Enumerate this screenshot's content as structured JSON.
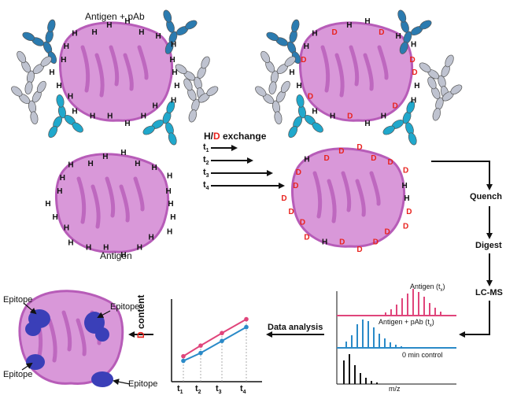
{
  "labels": {
    "antigen_pab": "Antigen + pAb",
    "antigen": "Antigen",
    "hd_exchange_prefix": "H/",
    "hd_exchange_d": "D",
    "hd_exchange_suffix": " exchange",
    "times": [
      "t",
      "t",
      "t",
      "t"
    ],
    "time_subs": [
      "1",
      "2",
      "3",
      "4"
    ],
    "quench": "Quench",
    "digest": "Digest",
    "lcms": "LC-MS",
    "data_analysis": "Data analysis",
    "epitope": "Epitope",
    "hydrogen": "H",
    "deuterium": "D"
  },
  "ms": {
    "panel1": "Antigen (t",
    "panel2": "Antigen + pAb (t",
    "sub": "x",
    "close": ")",
    "panel3": "0 min control",
    "xlabel": "m/z"
  },
  "chart_data": {
    "type": "line",
    "ylabel_prefix": "D",
    "ylabel_suffix": " content",
    "categories": [
      "t1",
      "t2",
      "t3",
      "t4"
    ],
    "cat_base": [
      "t",
      "t",
      "t",
      "t"
    ],
    "cat_subs": [
      "1",
      "2",
      "3",
      "4"
    ],
    "series": [
      {
        "values": [
          0.55,
          0.78,
          1.05,
          1.35
        ],
        "color": "#e0457b"
      },
      {
        "values": [
          0.45,
          0.62,
          0.88,
          1.18
        ],
        "color": "#2a8ac8"
      }
    ],
    "ylim": [
      0,
      1.7
    ]
  },
  "colors": {
    "protein": "#b75cb8",
    "protein_light": "#d998d9",
    "deuterium": "#e8231e",
    "antibody_dark": "#2b7bb0",
    "antibody_teal": "#20a8cc",
    "antibody_grey": "#bfc3d0",
    "ms_pink": "#e0457b",
    "ms_blue": "#2a8ac8",
    "ms_black": "#111111",
    "epitope": "#3a3fb8"
  }
}
